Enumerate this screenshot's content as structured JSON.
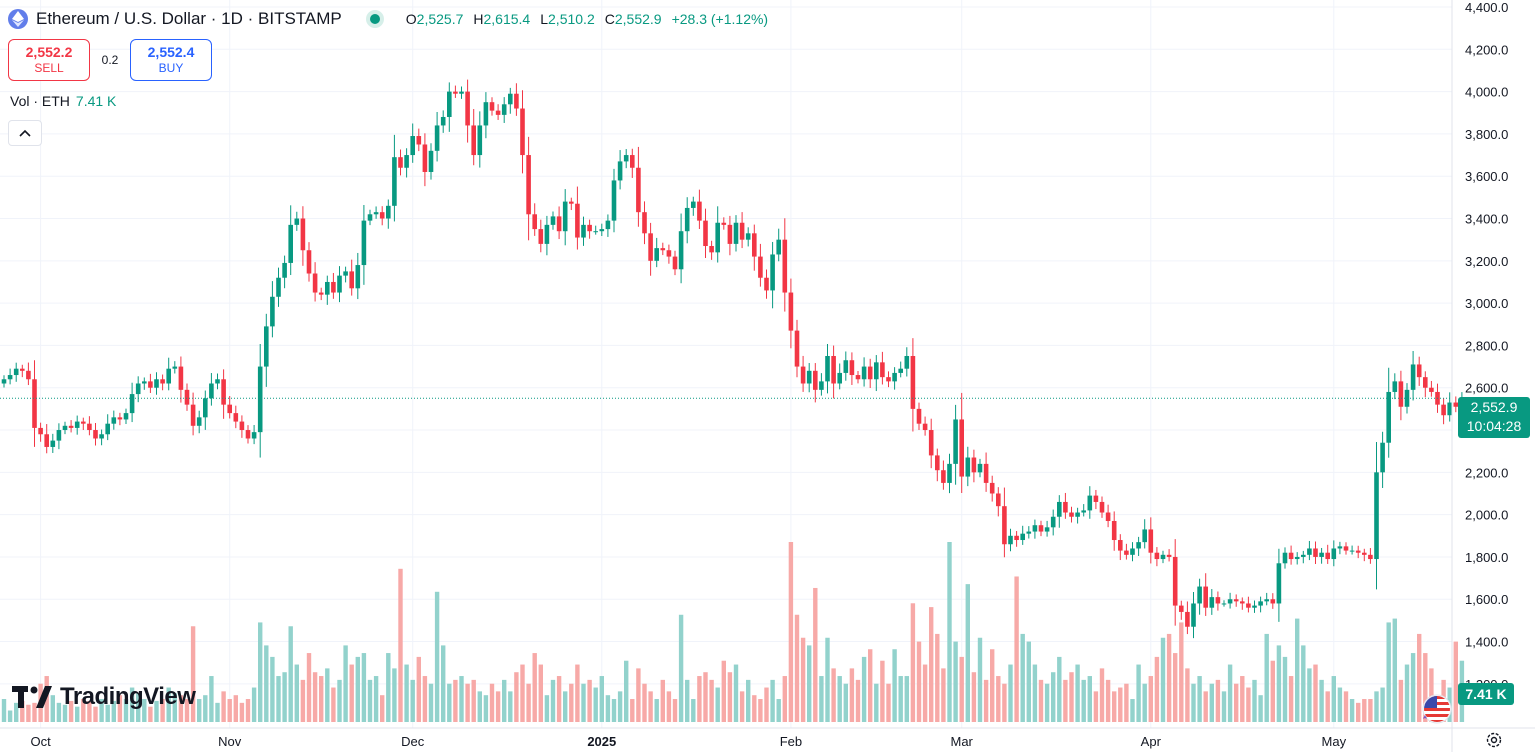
{
  "header": {
    "symbol_title": "Ethereum / U.S. Dollar · 1D · BITSTAMP",
    "open_label": "O",
    "open": "2,525.7",
    "high_label": "H",
    "high": "2,615.4",
    "low_label": "L",
    "low": "2,510.2",
    "close_label": "C",
    "close": "2,552.9",
    "change": "+28.3 (+1.12%)"
  },
  "trade": {
    "sell_price": "2,552.2",
    "sell_label": "SELL",
    "spread": "0.2",
    "buy_price": "2,552.4",
    "buy_label": "BUY"
  },
  "volume_legend": {
    "label": "Vol · ETH",
    "value": "7.41 K"
  },
  "last_price": {
    "price": "2,552.9",
    "countdown": "10:04:28"
  },
  "volume_tag": "7.41 K",
  "logo_text": "TradingView",
  "colors": {
    "up": "#089981",
    "down": "#f23645",
    "up_vol": "#92d2cc",
    "down_vol": "#f7a9a7",
    "grid": "#f0f3fa"
  },
  "chart_data": {
    "type": "candlestick",
    "title": "Ethereum / U.S. Dollar · 1D · BITSTAMP",
    "ylim": [
      1100,
      4400
    ],
    "y_ticks": [
      "4,400.0",
      "4,200.0",
      "4,000.0",
      "3,800.0",
      "3,600.0",
      "3,400.0",
      "3,200.0",
      "3,000.0",
      "2,800.0",
      "2,600.0",
      "2,400.0",
      "2,200.0",
      "2,000.0",
      "1,800.0",
      "1,600.0",
      "1,400.0",
      "1,200.0"
    ],
    "y_tick_values": [
      4400,
      4200,
      4000,
      3800,
      3600,
      3400,
      3200,
      3000,
      2800,
      2600,
      2400,
      2200,
      2000,
      1800,
      1600,
      1400,
      1200
    ],
    "x_ticks": [
      {
        "label": "Oct",
        "day": 6
      },
      {
        "label": "Nov",
        "day": 37
      },
      {
        "label": "Dec",
        "day": 67
      },
      {
        "label": "2025",
        "day": 98,
        "bold": true
      },
      {
        "label": "Feb",
        "day": 129
      },
      {
        "label": "Mar",
        "day": 157
      },
      {
        "label": "Apr",
        "day": 188
      },
      {
        "label": "May",
        "day": 218
      }
    ],
    "close": [
      2640,
      2660,
      2690,
      2680,
      2640,
      2410,
      2380,
      2320,
      2350,
      2400,
      2420,
      2410,
      2440,
      2430,
      2400,
      2360,
      2380,
      2430,
      2460,
      2450,
      2480,
      2570,
      2620,
      2630,
      2600,
      2640,
      2620,
      2690,
      2700,
      2590,
      2520,
      2420,
      2460,
      2550,
      2620,
      2640,
      2520,
      2480,
      2440,
      2400,
      2360,
      2390,
      2700,
      2890,
      3030,
      3120,
      3190,
      3370,
      3400,
      3250,
      3140,
      3050,
      3040,
      3100,
      3050,
      3130,
      3150,
      3070,
      3180,
      3390,
      3420,
      3430,
      3400,
      3460,
      3690,
      3640,
      3700,
      3790,
      3750,
      3620,
      3720,
      3840,
      3880,
      4000,
      3990,
      4000,
      3840,
      3700,
      3840,
      3950,
      3910,
      3890,
      3940,
      3990,
      3920,
      3700,
      3420,
      3350,
      3280,
      3370,
      3410,
      3340,
      3480,
      3470,
      3310,
      3370,
      3340,
      3340,
      3350,
      3390,
      3580,
      3670,
      3700,
      3640,
      3430,
      3330,
      3200,
      3260,
      3250,
      3220,
      3160,
      3340,
      3450,
      3480,
      3390,
      3270,
      3240,
      3380,
      3370,
      3280,
      3380,
      3300,
      3330,
      3220,
      3120,
      3060,
      3230,
      3300,
      3050,
      2870,
      2700,
      2620,
      2680,
      2590,
      2630,
      2750,
      2620,
      2670,
      2730,
      2660,
      2640,
      2700,
      2640,
      2720,
      2650,
      2630,
      2670,
      2690,
      2750,
      2500,
      2430,
      2400,
      2280,
      2210,
      2150,
      2240,
      2450,
      2180,
      2270,
      2200,
      2240,
      2150,
      2100,
      2040,
      1860,
      1900,
      1880,
      1910,
      1920,
      1950,
      1920,
      1940,
      1990,
      2060,
      2010,
      1990,
      2010,
      2020,
      2090,
      2060,
      2010,
      1970,
      1880,
      1830,
      1810,
      1840,
      1870,
      1930,
      1820,
      1790,
      1810,
      1800,
      1570,
      1540,
      1470,
      1580,
      1660,
      1560,
      1610,
      1580,
      1580,
      1600,
      1590,
      1580,
      1560,
      1570,
      1590,
      1600,
      1580,
      1770,
      1820,
      1790,
      1800,
      1810,
      1840,
      1800,
      1820,
      1790,
      1840,
      1850,
      1830,
      1830,
      1820,
      1810,
      1790,
      2200,
      2340,
      2580,
      2630,
      2510,
      2590,
      2710,
      2650,
      2600,
      2580,
      2520,
      2470,
      2530,
      2510,
      2550
    ],
    "volume_note": "volume bars shown beneath price; volume scale not labelled",
    "volume": [
      60,
      30,
      50,
      55,
      45,
      50,
      100,
      120,
      70,
      50,
      45,
      55,
      40,
      60,
      55,
      40,
      60,
      45,
      55,
      70,
      60,
      90,
      75,
      60,
      40,
      55,
      60,
      90,
      75,
      70,
      60,
      250,
      60,
      70,
      120,
      50,
      80,
      60,
      70,
      50,
      60,
      90,
      260,
      200,
      170,
      120,
      130,
      250,
      150,
      110,
      180,
      130,
      120,
      140,
      90,
      110,
      200,
      150,
      170,
      180,
      110,
      120,
      70,
      180,
      140,
      400,
      150,
      110,
      170,
      120,
      100,
      340,
      200,
      100,
      110,
      120,
      100,
      110,
      80,
      70,
      100,
      80,
      110,
      80,
      130,
      150,
      100,
      180,
      150,
      70,
      110,
      120,
      80,
      100,
      150,
      100,
      110,
      90,
      120,
      70,
      60,
      80,
      160,
      60,
      140,
      100,
      80,
      60,
      110,
      80,
      60,
      280,
      110,
      60,
      120,
      130,
      110,
      90,
      160,
      130,
      150,
      80,
      110,
      70,
      60,
      90,
      110,
      60,
      120,
      470,
      280,
      220,
      200,
      350,
      120,
      220,
      140,
      120,
      100,
      140,
      110,
      170,
      190,
      100,
      160,
      100,
      190,
      120,
      120,
      310,
      210,
      150,
      300,
      230,
      140,
      470,
      210,
      170,
      360,
      130,
      220,
      110,
      190,
      120,
      100,
      150,
      380,
      230,
      210,
      150,
      110,
      100,
      130,
      170,
      110,
      130,
      150,
      110,
      120,
      80,
      140,
      110,
      80,
      90,
      100,
      60,
      150,
      100,
      120,
      170,
      220,
      230,
      180,
      260,
      140,
      100,
      120,
      80,
      100,
      110,
      80,
      150,
      100,
      120,
      90,
      110,
      70,
      230,
      160,
      200,
      170,
      120,
      270,
      200,
      140,
      150,
      110,
      80,
      120,
      90,
      80,
      60,
      50,
      60,
      60,
      80,
      90,
      260,
      270,
      110,
      150,
      180,
      230,
      180,
      140,
      70,
      110,
      90,
      210,
      160
    ]
  }
}
